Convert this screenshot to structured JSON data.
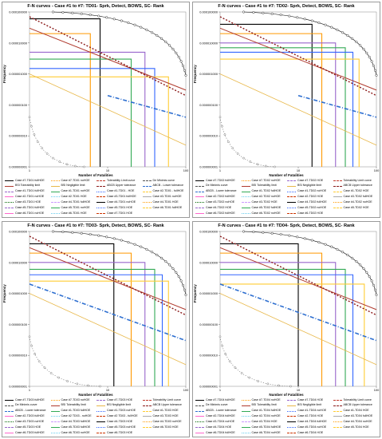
{
  "figure": {
    "panels": [
      {
        "id": "td01",
        "title": "F-N curves - Case #1 to #7: TD01- Sprk, Detect, BOWS, SC- Rank"
      },
      {
        "id": "td02",
        "title": "F-N curves - Case #1 to #7: TD02- Sprk, Detect, BOWS, SC- Rank"
      },
      {
        "id": "td03",
        "title": "F-N curves - Case #1 to #7: TD03- Sprk, Detect, BOWS, SC- Rank"
      },
      {
        "id": "td04",
        "title": "F-N curves - Case #1 to #7: TD04- Sprk, Detect, BOWS, SC- Rank"
      }
    ],
    "ylabel": "Frequency",
    "xlabel": "Number of Fatalities",
    "y_ticks": [
      "0.000100000",
      "0.000010000",
      "0.000001000",
      "0.000000100",
      "0.000000010",
      "0.000000001"
    ],
    "x_ticks": [
      "1",
      "10",
      "100"
    ],
    "legends": [
      [
        "Case #7-TD01 fullHOE",
        "Case #7-TD01 noHOE",
        "Tolerability Limit curve",
        "De Minimis curve",
        "BSI Tolerability limit",
        "BSI Negligible limit",
        "ABCB Upper tolerance",
        "ABCB - Lower tolerance",
        "Case #1-TD01 fullHOE",
        "Case #1-TD01 noHOE",
        "Case #1-TD01 - HOE",
        "Case #2-TD01 - fullHOE",
        "Case #2-TD01 noHOE",
        "Case #2-TD01 HOE",
        "Case #3-TD01 fullHOE",
        "Case #3-TD01 noHOE",
        "Case #3-TD01 HOE",
        "Case #4-TD01 fullHOE",
        "Case #4-TD01 noHOE",
        "Case #4-TD01 HOE",
        "Case #5-TD01 fullHOE",
        "Case #5-TD01 noHOE",
        "Case #5-TD01 HOE",
        "Case #6-TD01 fullHOE",
        "Case #6-TD01 noHOE",
        "Case #6-TD01 HOE",
        "Case #7-TD01 HOE"
      ],
      [
        "Case #7-TD02 fullHOE",
        "Case #7-TD02 noHOE",
        "Case #7-TD02 HOE",
        "Tolerability Limit curve",
        "De Minimis curve",
        "BSI Tolerability limit",
        "BSI Negligible limit",
        "ABCB Upper tolerance",
        "ABCB - Lower tolerance",
        "Case #1-TD02 fullHOE",
        "Case #1-TD02 noHOE",
        "Case #1-TD02 HOE",
        "Case #2-TD02 fullHOE",
        "Case #2-TD02 noHOE",
        "Case #2-TD02 HOE",
        "Case #3-TD02 fullHOE",
        "Case #3-TD02 noHOE",
        "Case #3-TD02 HOE",
        "Case #4-TD02 fullHOE",
        "Case #4-TD02 noHOE",
        "Case #4-TD02 HOE",
        "Case #5-TD02 fullHOE",
        "Case #5-TD02 noHOE",
        "Case #5-TD02 HOE",
        "Case #6-TD02 fullHOE",
        "Case #6-TD02 noHOE",
        "Case #6-TD02 HOE"
      ],
      [
        "Case #7-TD03 fullHOE",
        "Case #7-TD03 noHOE",
        "Case #7-TD03 HOE",
        "Tolerability Limit curve",
        "De Minimis curve",
        "BSI Tolerability limit",
        "BSI Negligible limit",
        "ABCB Upper tolerance",
        "ABCB - Lower tolerance",
        "Case #1-TD03 fullHOE",
        "Case #1-TD03 noHOE",
        "Case #1-TD03 HOE",
        "Case #2-TD03 fullHOE",
        "Case #2 TD03 - noHOE",
        "Case #2 TD03 - fullHOE",
        "Case #3-TD03 HOE",
        "Case #3-TD03 noHOE",
        "Case #4-TD03 fullHOE",
        "Case #4-TD03 HOE",
        "Case #4-TD03 noHOE",
        "Case #5-TD03 HOE",
        "Case #5-TD03 fullHOE",
        "Case #5-TD03 noHOE",
        "Case #6-TD03 HOE",
        "Case #6-TD03 fullHOE",
        "Case #6-TD03 noHOE",
        "Case #6-TD03 HOE"
      ],
      [
        "Case #7-TD04 fullHOE",
        "Case #7-TD04 noHOE",
        "Case #7-TD04 HOE",
        "Tolerability Limit curve",
        "De Minimis curve",
        "BSI Tolerability limit",
        "BSI Negligible limit",
        "ABCB Upper tolerance",
        "ABCB - Lower tolerance",
        "Case #1-TD04 fullHOE",
        "Case #1-TD04 noHOE",
        "Case #1-TD04 HOE",
        "Case #2-TD04 fullHOE",
        "Case #2-TD04 noHOE",
        "Case #2-TD04 HOE",
        "Case #3-TD04 fullHOE",
        "Case #3-TD04 noHOE",
        "Case #3-TD04 HOE",
        "Case #4-TD04 fullHOE",
        "Case #4-TD04 noHOE",
        "Case #4-TD04 HOE",
        "Case #5-TD04 fullHOE",
        "Case #5-TD04 noHOE",
        "Case #5-TD04 HOE",
        "Case #6-TD04 fullHOE",
        "Case #6-TD04 noHOE",
        "Case #6-TD04 HOE"
      ]
    ]
  },
  "style": {
    "reference_colors": {
      "tolerability": "#c0392b",
      "deminimis": "#555555",
      "bsi_tolerability": "#b03a2e",
      "bsi_negligible": "#e8b84a",
      "abcb_upper": "#8b1a1a",
      "abcb_lower": "#2e6fd0"
    },
    "case_colors": [
      "#000000",
      "#ff9900",
      "#9966cc",
      "#33aa55",
      "#3366ff",
      "#ffcc33",
      "#ff66cc",
      "#66ccee",
      "#cc3300",
      "#aaaaaa",
      "#006600",
      "#cc99ff"
    ]
  },
  "chart_data": [
    {
      "type": "line",
      "title": "F-N curves - Case #1 to #7: TD01- Sprk, Detect, BOWS, SC- Rank",
      "xlabel": "Number of Fatalities",
      "ylabel": "Frequency",
      "x_scale": "log",
      "y_scale": "log",
      "xlim": [
        1,
        100
      ],
      "ylim": [
        1e-09,
        0.0001
      ],
      "reference_lines": [
        {
          "name": "BSI Tolerability limit",
          "points": [
            [
              1,
              3e-05
            ],
            [
              100,
              3e-07
            ]
          ]
        },
        {
          "name": "ABCB Upper tolerance",
          "points": [
            [
              1,
              7e-05
            ],
            [
              100,
              2e-07
            ]
          ]
        },
        {
          "name": "ABCB - Lower tolerance",
          "points": [
            [
              10,
              2e-07
            ],
            [
              100,
              4e-08
            ]
          ]
        },
        {
          "name": "BSI Negligible limit",
          "points": [
            [
              1,
              1e-06
            ],
            [
              100,
              5e-09
            ]
          ]
        },
        {
          "name": "Tolerability Limit curve",
          "points": [
            [
              2,
              0.0001
            ],
            [
              100,
              9e-07
            ]
          ]
        },
        {
          "name": "De Minimis curve",
          "points": [
            [
              1,
              4e-08
            ],
            [
              5,
              1e-09
            ]
          ]
        }
      ],
      "steps": [
        {
          "name": "Case #7-TD01 fullHOE",
          "x_end": 8,
          "y": 6e-05
        },
        {
          "name": "Case #1-TD01 fullHOE",
          "x_end": 6,
          "y": 2e-05
        },
        {
          "name": "Case #2-TD01 - fullHOE",
          "x_end": 30,
          "y": 5e-06
        },
        {
          "name": "Case #3-TD01 fullHOE",
          "x_end": 20,
          "y": 3e-06
        },
        {
          "name": "Case #4-TD01 fullHOE",
          "x_end": 40,
          "y": 1.5e-06
        },
        {
          "name": "Case #5-TD01 fullHOE",
          "x_end": 60,
          "y": 8e-07
        }
      ]
    },
    {
      "type": "line",
      "title": "F-N curves - Case #1 to #7: TD02- Sprk, Detect, BOWS, SC- Rank",
      "xlabel": "Number of Fatalities",
      "ylabel": "Frequency",
      "x_scale": "log",
      "y_scale": "log",
      "xlim": [
        1,
        100
      ],
      "ylim": [
        1e-09,
        0.0001
      ],
      "reference_lines": [
        {
          "name": "BSI Tolerability limit",
          "points": [
            [
              1,
              3e-05
            ],
            [
              100,
              3e-07
            ]
          ]
        },
        {
          "name": "ABCB Upper tolerance",
          "points": [
            [
              1,
              7e-05
            ],
            [
              100,
              2e-07
            ]
          ]
        },
        {
          "name": "ABCB - Lower tolerance",
          "points": [
            [
              10,
              2e-07
            ],
            [
              100,
              4e-08
            ]
          ]
        },
        {
          "name": "BSI Negligible limit",
          "points": [
            [
              1,
              1e-06
            ],
            [
              100,
              5e-09
            ]
          ]
        },
        {
          "name": "Tolerability Limit curve",
          "points": [
            [
              2,
              0.0001
            ],
            [
              100,
              9e-07
            ]
          ]
        },
        {
          "name": "De Minimis curve",
          "points": [
            [
              1,
              4e-08
            ],
            [
              5,
              1e-09
            ]
          ]
        }
      ],
      "steps": [
        {
          "name": "Case #7-TD02 fullHOE",
          "x_end": 15,
          "y": 4e-05
        },
        {
          "name": "Case #1-TD02 fullHOE",
          "x_end": 20,
          "y": 2e-05
        },
        {
          "name": "Case #2-TD02 fullHOE",
          "x_end": 30,
          "y": 1e-05
        },
        {
          "name": "Case #3-TD02 fullHOE",
          "x_end": 40,
          "y": 7e-06
        },
        {
          "name": "Case #4-TD02 fullHOE",
          "x_end": 50,
          "y": 5e-06
        },
        {
          "name": "Case #5-TD02 fullHOE",
          "x_end": 60,
          "y": 3e-06
        }
      ]
    },
    {
      "type": "line",
      "title": "F-N curves - Case #1 to #7: TD03- Sprk, Detect, BOWS, SC- Rank",
      "xlabel": "Number of Fatalities",
      "ylabel": "Frequency",
      "x_scale": "log",
      "y_scale": "log",
      "xlim": [
        1,
        100
      ],
      "ylim": [
        1e-09,
        0.0001
      ],
      "reference_lines": [
        {
          "name": "BSI Tolerability limit",
          "points": [
            [
              1,
              3e-05
            ],
            [
              100,
              3e-07
            ]
          ]
        },
        {
          "name": "ABCB Upper tolerance",
          "points": [
            [
              1,
              7e-05
            ],
            [
              100,
              2e-07
            ]
          ]
        },
        {
          "name": "ABCB - Lower tolerance",
          "points": [
            [
              1,
              2e-06
            ],
            [
              100,
              3e-08
            ]
          ]
        },
        {
          "name": "BSI Negligible limit",
          "points": [
            [
              1,
              1e-06
            ],
            [
              100,
              5e-09
            ]
          ]
        },
        {
          "name": "Tolerability Limit curve",
          "points": [
            [
              2,
              0.0001
            ],
            [
              100,
              9e-07
            ]
          ]
        },
        {
          "name": "De Minimis curve",
          "points": [
            [
              1,
              4e-08
            ],
            [
              8,
              1e-09
            ]
          ]
        }
      ],
      "steps": [
        {
          "name": "Case #7-TD03 fullHOE",
          "x_end": 12,
          "y": 4e-05
        },
        {
          "name": "Case #1-TD03 fullHOE",
          "x_end": 20,
          "y": 2e-05
        },
        {
          "name": "Case #2-TD03 fullHOE",
          "x_end": 30,
          "y": 1e-05
        },
        {
          "name": "Case #3-TD03 HOE",
          "x_end": 40,
          "y": 6e-06
        },
        {
          "name": "Case #4-TD03 fullHOE",
          "x_end": 50,
          "y": 4e-06
        },
        {
          "name": "Case #5-TD03 fullHOE",
          "x_end": 60,
          "y": 2.5e-06
        }
      ]
    },
    {
      "type": "line",
      "title": "F-N curves - Case #1 to #7: TD04- Sprk, Detect, BOWS, SC- Rank",
      "xlabel": "Number of Fatalities",
      "ylabel": "Frequency",
      "x_scale": "log",
      "y_scale": "log",
      "xlim": [
        1,
        100
      ],
      "ylim": [
        1e-09,
        0.0001
      ],
      "reference_lines": [
        {
          "name": "BSI Tolerability limit",
          "points": [
            [
              1,
              3e-05
            ],
            [
              100,
              3e-07
            ]
          ]
        },
        {
          "name": "ABCB Upper tolerance",
          "points": [
            [
              1,
              7e-05
            ],
            [
              100,
              2e-07
            ]
          ]
        },
        {
          "name": "ABCB - Lower tolerance",
          "points": [
            [
              1,
              2e-06
            ],
            [
              100,
              3e-08
            ]
          ]
        },
        {
          "name": "BSI Negligible limit",
          "points": [
            [
              1,
              1e-06
            ],
            [
              100,
              5e-09
            ]
          ]
        },
        {
          "name": "Tolerability Limit curve",
          "points": [
            [
              2,
              0.0001
            ],
            [
              100,
              9e-07
            ]
          ]
        },
        {
          "name": "De Minimis curve",
          "points": [
            [
              1,
              4e-08
            ],
            [
              8,
              1e-09
            ]
          ]
        }
      ],
      "steps": [
        {
          "name": "Case #7-TD04 fullHOE",
          "x_end": 10,
          "y": 4e-05
        },
        {
          "name": "Case #1-TD04 fullHOE",
          "x_end": 20,
          "y": 2e-05
        },
        {
          "name": "Case #2-TD04 fullHOE",
          "x_end": 30,
          "y": 1e-05
        },
        {
          "name": "Case #3-TD04 fullHOE",
          "x_end": 40,
          "y": 6e-06
        },
        {
          "name": "Case #4-TD04 fullHOE",
          "x_end": 50,
          "y": 4e-06
        },
        {
          "name": "Case #5-TD04 fullHOE",
          "x_end": 70,
          "y": 2e-06
        }
      ]
    }
  ]
}
